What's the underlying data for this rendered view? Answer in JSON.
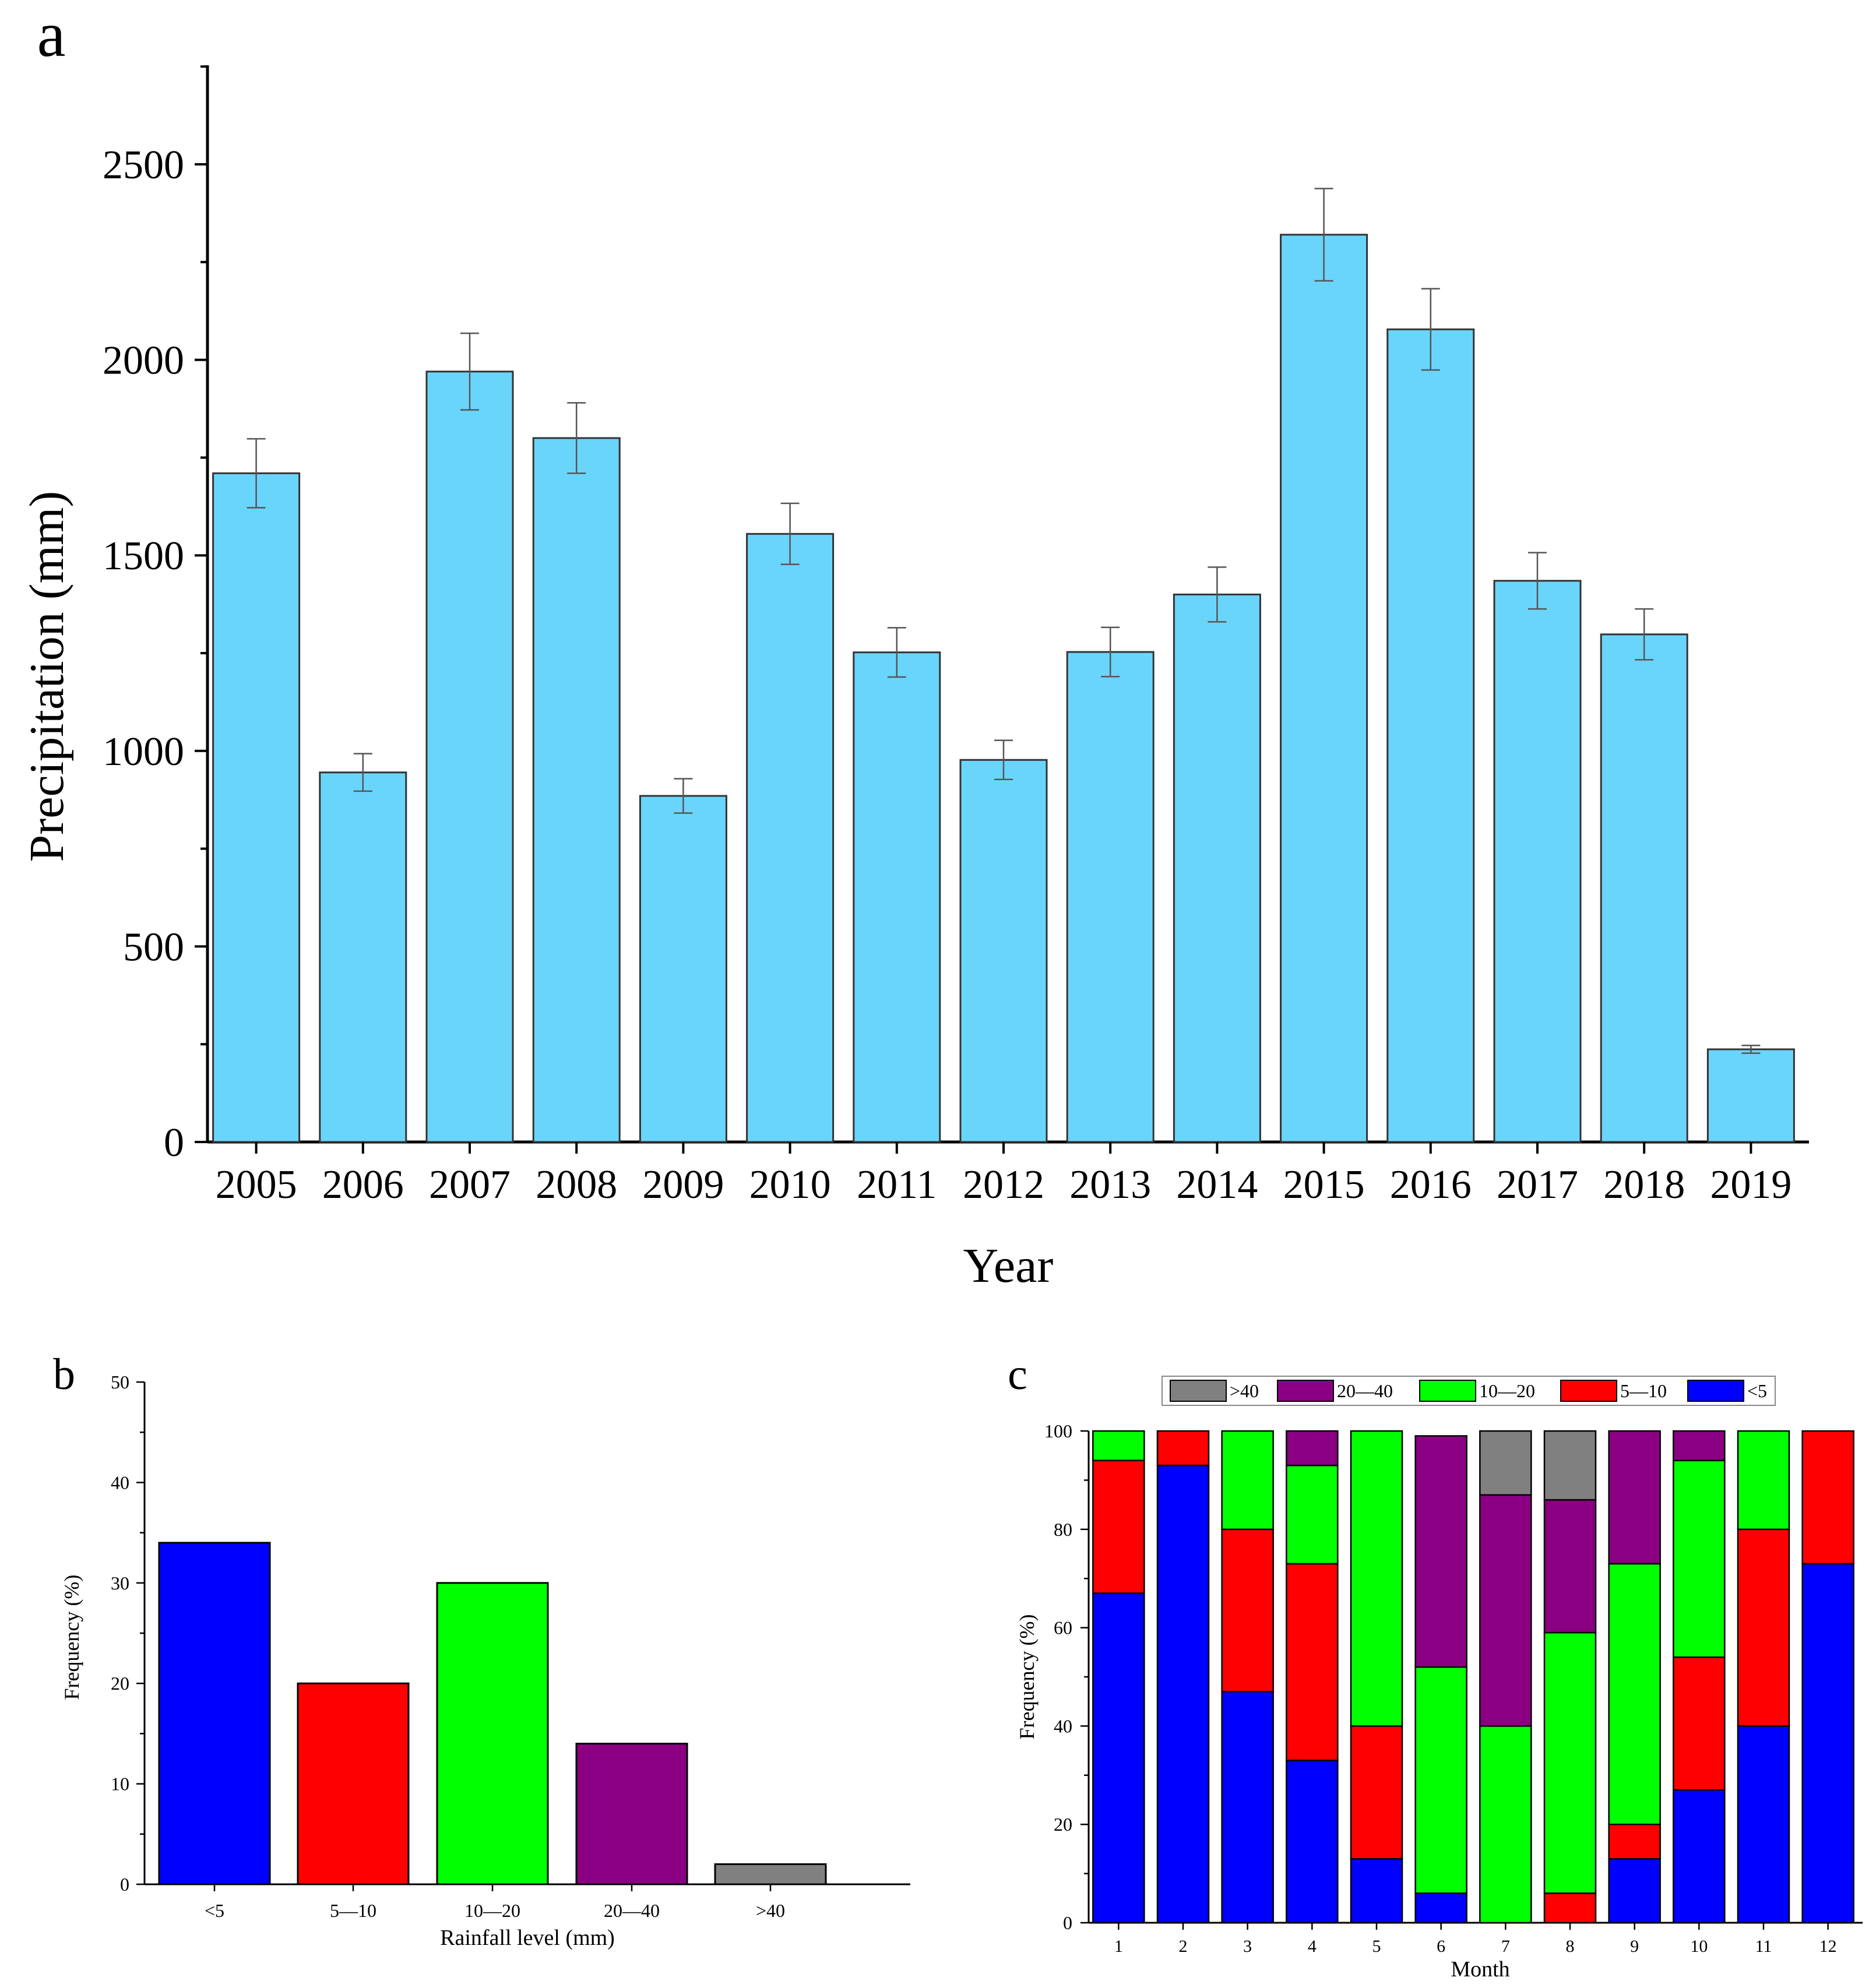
{
  "chart_data": [
    {
      "panel": "a",
      "type": "bar",
      "xlabel": "Year",
      "ylabel": "Precipitation (mm)",
      "ylim": [
        0,
        2750
      ],
      "yticks": [
        0,
        500,
        1000,
        1500,
        2000,
        2500
      ],
      "categories": [
        "2005",
        "2006",
        "2007",
        "2008",
        "2009",
        "2010",
        "2011",
        "2012",
        "2013",
        "2014",
        "2015",
        "2016",
        "2017",
        "2018",
        "2019"
      ],
      "values": [
        1710,
        945,
        1970,
        1800,
        885,
        1555,
        1252,
        977,
        1253,
        1400,
        2320,
        2078,
        1435,
        1298,
        237
      ],
      "errors": [
        88,
        48,
        98,
        90,
        44,
        78,
        63,
        50,
        63,
        70,
        118,
        104,
        72,
        65,
        10
      ],
      "bar_color": "#6AD5FB"
    },
    {
      "panel": "b",
      "type": "bar",
      "xlabel": "Rainfall level (mm)",
      "ylabel": "Frequency (%)",
      "ylim": [
        0,
        50
      ],
      "yticks": [
        0,
        10,
        20,
        30,
        40,
        50
      ],
      "categories": [
        "<5",
        "5—10",
        "10—20",
        "20—40",
        ">40"
      ],
      "values": [
        34,
        20,
        30,
        14,
        2
      ],
      "colors": [
        "#0000FF",
        "#FF0000",
        "#00FF00",
        "#8B0083",
        "#808080"
      ]
    },
    {
      "panel": "c",
      "type": "stacked bar",
      "xlabel": "Month",
      "ylabel": "Frequency (%)",
      "ylim": [
        0,
        100
      ],
      "yticks": [
        0,
        20,
        40,
        60,
        80,
        100
      ],
      "categories": [
        "1",
        "2",
        "3",
        "4",
        "5",
        "6",
        "7",
        "8",
        "9",
        "10",
        "11",
        "12"
      ],
      "legend": [
        ">40",
        "20—40",
        "10—20",
        "5—10",
        "<5"
      ],
      "legend_position": "top",
      "series": [
        {
          "name": "<5",
          "color": "#0000FF",
          "values": [
            67,
            93,
            47,
            33,
            13,
            6,
            0,
            0,
            13,
            27,
            40,
            73
          ]
        },
        {
          "name": "5—10",
          "color": "#FF0000",
          "values": [
            27,
            7,
            33,
            40,
            27,
            0,
            0,
            6,
            7,
            27,
            40,
            27
          ]
        },
        {
          "name": "10—20",
          "color": "#00FF00",
          "values": [
            6,
            0,
            20,
            20,
            60,
            46,
            40,
            53,
            53,
            40,
            20,
            0
          ]
        },
        {
          "name": "20—40",
          "color": "#8B0083",
          "values": [
            0,
            0,
            0,
            7,
            0,
            47,
            47,
            27,
            27,
            6,
            0,
            0
          ]
        },
        {
          "name": ">40",
          "color": "#808080",
          "values": [
            0,
            0,
            0,
            0,
            0,
            0,
            13,
            14,
            0,
            0,
            0,
            0
          ]
        }
      ]
    }
  ]
}
